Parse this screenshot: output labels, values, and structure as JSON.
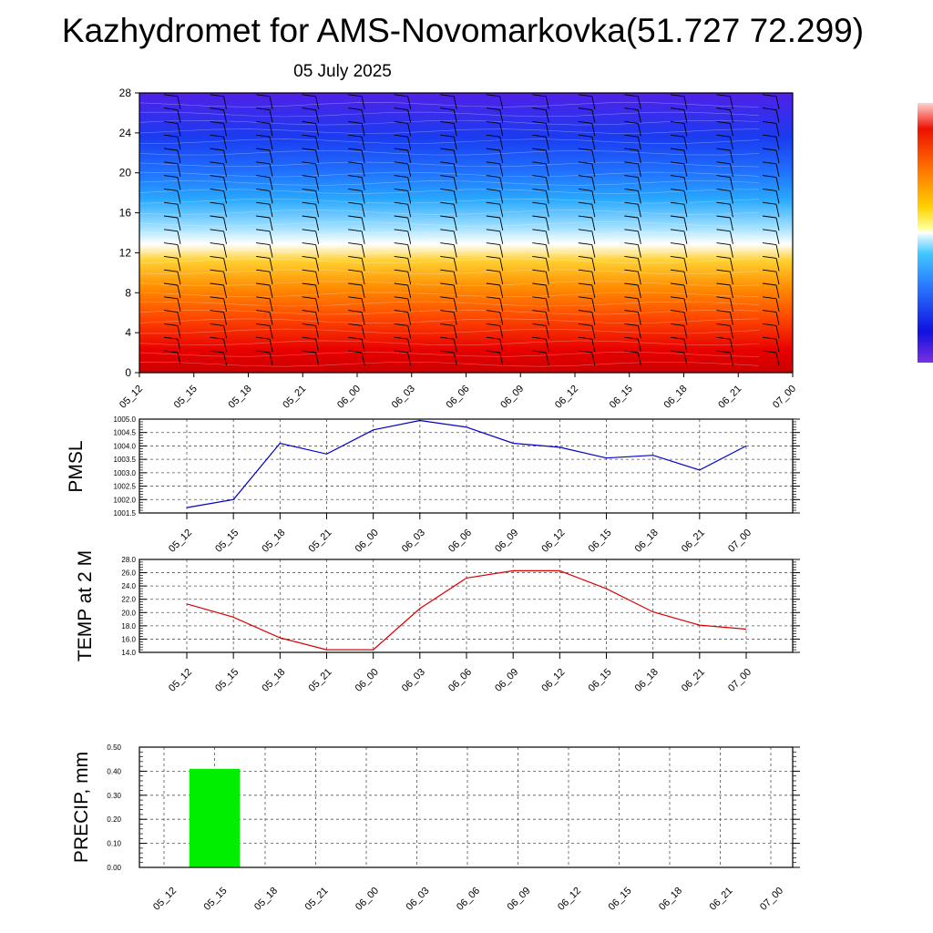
{
  "title": "Kazhydromet for AMS-Novomarkovka(51.727 72.299)",
  "subtitle": "05 July 2025",
  "chart_data": [
    {
      "type": "heatmap",
      "x": [
        "05_12",
        "05_15",
        "05_18",
        "05_21",
        "06_00",
        "06_03",
        "06_06",
        "06_09",
        "06_12",
        "06_15",
        "06_18",
        "06_21",
        "07_00"
      ],
      "ylim": [
        0,
        28
      ],
      "yticks": [
        0,
        4,
        8,
        12,
        16,
        20,
        24,
        28
      ],
      "grid": false,
      "colorbar": "right",
      "colors": {
        "bottom": "#e00000",
        "orange": "#ff8a00",
        "yellow": "#ffe040",
        "white": "#ffffff",
        "light_blue": "#5fc8ff",
        "blue": "#1a4cff",
        "top": "#5a18e8"
      }
    },
    {
      "type": "line",
      "ylabel": "PMSL",
      "x": [
        "05_12",
        "05_15",
        "05_18",
        "05_21",
        "06_00",
        "06_03",
        "06_06",
        "06_09",
        "06_12",
        "06_15",
        "06_18",
        "06_21",
        "07_00"
      ],
      "values": [
        1001.7,
        1002.0,
        1004.1,
        1003.7,
        1004.6,
        1004.95,
        1004.7,
        1004.1,
        1003.95,
        1003.55,
        1003.65,
        1003.1,
        1004.0
      ],
      "ylim": [
        1001.5,
        1005.0
      ],
      "yticks": [
        "1001.5",
        "1002.0",
        "1002.5",
        "1003.0",
        "1003.5",
        "1004.0",
        "1004.5",
        "1005.0"
      ],
      "grid": true,
      "color": "#0000cc"
    },
    {
      "type": "line",
      "ylabel": "TEMP at 2 M",
      "x": [
        "05_12",
        "05_15",
        "05_18",
        "05_21",
        "06_00",
        "06_03",
        "06_06",
        "06_09",
        "06_12",
        "06_15",
        "06_18",
        "06_21",
        "07_00"
      ],
      "values": [
        21.3,
        19.3,
        16.2,
        14.4,
        14.4,
        20.6,
        25.2,
        26.3,
        26.3,
        23.6,
        20.1,
        18.1,
        17.5
      ],
      "ylim": [
        14.0,
        28.0
      ],
      "yticks": [
        "14.0",
        "16.0",
        "18.0",
        "20.0",
        "22.0",
        "24.0",
        "26.0",
        "28.0"
      ],
      "grid": true,
      "color": "#dd0000"
    },
    {
      "type": "bar",
      "ylabel": "PRECIP, mm",
      "categories": [
        "05_12",
        "05_15",
        "05_18",
        "05_21",
        "06_00",
        "06_03",
        "06_06",
        "06_09",
        "06_12",
        "06_15",
        "06_18",
        "06_21",
        "07_00"
      ],
      "values": [
        0,
        0.41,
        0,
        0,
        0,
        0,
        0,
        0,
        0,
        0,
        0,
        0,
        0
      ],
      "ylim": [
        0,
        0.5
      ],
      "yticks": [
        "0.00",
        "0.10",
        "0.20",
        "0.30",
        "0.40",
        "0.50"
      ],
      "grid": true,
      "color": "#00ee00"
    }
  ]
}
